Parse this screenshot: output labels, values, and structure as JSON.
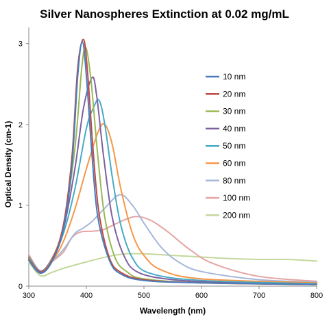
{
  "chart_data": {
    "type": "line",
    "title": "Silver Nanospheres Extinction at 0.02 mg/mL",
    "xlabel": "Wavelength (nm)",
    "ylabel": "Optical Density (cm-1)",
    "xlim": [
      300,
      800
    ],
    "ylim": [
      0,
      3.2
    ],
    "xticks": [
      "300",
      "400",
      "500",
      "600",
      "700",
      "800"
    ],
    "yticks": [
      "0",
      "1",
      "2",
      "3"
    ],
    "grid": false,
    "legend_position": "right",
    "series": [
      {
        "name": "10 nm",
        "color": "#4a7ebb",
        "points": [
          [
            300,
            0.32
          ],
          [
            320,
            0.16
          ],
          [
            340,
            0.3
          ],
          [
            360,
            0.7
          ],
          [
            375,
            1.5
          ],
          [
            385,
            2.6
          ],
          [
            393,
            3.02
          ],
          [
            400,
            2.6
          ],
          [
            410,
            1.6
          ],
          [
            420,
            0.85
          ],
          [
            440,
            0.32
          ],
          [
            460,
            0.15
          ],
          [
            500,
            0.07
          ],
          [
            600,
            0.04
          ],
          [
            800,
            0.02
          ]
        ]
      },
      {
        "name": "20 nm",
        "color": "#be4b48",
        "points": [
          [
            300,
            0.33
          ],
          [
            320,
            0.17
          ],
          [
            340,
            0.32
          ],
          [
            360,
            0.75
          ],
          [
            375,
            1.6
          ],
          [
            385,
            2.7
          ],
          [
            395,
            3.05
          ],
          [
            402,
            2.65
          ],
          [
            412,
            1.65
          ],
          [
            422,
            0.9
          ],
          [
            440,
            0.35
          ],
          [
            460,
            0.17
          ],
          [
            500,
            0.08
          ],
          [
            600,
            0.04
          ],
          [
            800,
            0.02
          ]
        ]
      },
      {
        "name": "30 nm",
        "color": "#98b954",
        "points": [
          [
            300,
            0.34
          ],
          [
            320,
            0.17
          ],
          [
            340,
            0.33
          ],
          [
            360,
            0.75
          ],
          [
            380,
            1.7
          ],
          [
            392,
            2.7
          ],
          [
            399,
            2.95
          ],
          [
            408,
            2.55
          ],
          [
            420,
            1.6
          ],
          [
            432,
            0.85
          ],
          [
            450,
            0.35
          ],
          [
            470,
            0.18
          ],
          [
            500,
            0.09
          ],
          [
            600,
            0.04
          ],
          [
            800,
            0.02
          ]
        ]
      },
      {
        "name": "40 nm",
        "color": "#7d60a0",
        "points": [
          [
            300,
            0.35
          ],
          [
            320,
            0.18
          ],
          [
            340,
            0.34
          ],
          [
            360,
            0.7
          ],
          [
            380,
            1.45
          ],
          [
            395,
            2.2
          ],
          [
            410,
            2.58
          ],
          [
            418,
            2.35
          ],
          [
            430,
            1.6
          ],
          [
            445,
            0.85
          ],
          [
            465,
            0.38
          ],
          [
            490,
            0.17
          ],
          [
            550,
            0.08
          ],
          [
            650,
            0.04
          ],
          [
            800,
            0.02
          ]
        ]
      },
      {
        "name": "50 nm",
        "color": "#46aac5",
        "points": [
          [
            300,
            0.36
          ],
          [
            320,
            0.18
          ],
          [
            340,
            0.33
          ],
          [
            360,
            0.65
          ],
          [
            380,
            1.2
          ],
          [
            400,
            1.95
          ],
          [
            412,
            2.2
          ],
          [
            422,
            2.3
          ],
          [
            432,
            2.0
          ],
          [
            445,
            1.35
          ],
          [
            460,
            0.75
          ],
          [
            480,
            0.35
          ],
          [
            510,
            0.16
          ],
          [
            600,
            0.07
          ],
          [
            800,
            0.03
          ]
        ]
      },
      {
        "name": "60 nm",
        "color": "#f79646",
        "points": [
          [
            300,
            0.37
          ],
          [
            320,
            0.18
          ],
          [
            340,
            0.3
          ],
          [
            360,
            0.55
          ],
          [
            380,
            0.95
          ],
          [
            400,
            1.45
          ],
          [
            420,
            1.9
          ],
          [
            432,
            2.0
          ],
          [
            445,
            1.75
          ],
          [
            460,
            1.2
          ],
          [
            480,
            0.65
          ],
          [
            500,
            0.38
          ],
          [
            530,
            0.2
          ],
          [
            600,
            0.09
          ],
          [
            800,
            0.04
          ]
        ]
      },
      {
        "name": "80 nm",
        "color": "#a5b7d9",
        "points": [
          [
            300,
            0.38
          ],
          [
            320,
            0.19
          ],
          [
            340,
            0.3
          ],
          [
            360,
            0.45
          ],
          [
            380,
            0.65
          ],
          [
            395,
            0.72
          ],
          [
            410,
            0.8
          ],
          [
            430,
            0.95
          ],
          [
            458,
            1.13
          ],
          [
            480,
            1.0
          ],
          [
            500,
            0.78
          ],
          [
            530,
            0.48
          ],
          [
            560,
            0.3
          ],
          [
            600,
            0.18
          ],
          [
            700,
            0.08
          ],
          [
            800,
            0.05
          ]
        ]
      },
      {
        "name": "100 nm",
        "color": "#e6a5a3",
        "points": [
          [
            300,
            0.39
          ],
          [
            320,
            0.19
          ],
          [
            340,
            0.3
          ],
          [
            360,
            0.42
          ],
          [
            375,
            0.6
          ],
          [
            390,
            0.67
          ],
          [
            410,
            0.68
          ],
          [
            430,
            0.7
          ],
          [
            460,
            0.8
          ],
          [
            485,
            0.86
          ],
          [
            510,
            0.82
          ],
          [
            540,
            0.68
          ],
          [
            580,
            0.45
          ],
          [
            620,
            0.28
          ],
          [
            700,
            0.12
          ],
          [
            800,
            0.06
          ]
        ]
      },
      {
        "name": "200 nm",
        "color": "#c4d79b",
        "points": [
          [
            300,
            0.3
          ],
          [
            320,
            0.13
          ],
          [
            340,
            0.17
          ],
          [
            360,
            0.22
          ],
          [
            400,
            0.3
          ],
          [
            440,
            0.37
          ],
          [
            470,
            0.4
          ],
          [
            500,
            0.4
          ],
          [
            550,
            0.38
          ],
          [
            600,
            0.36
          ],
          [
            650,
            0.34
          ],
          [
            700,
            0.33
          ],
          [
            750,
            0.33
          ],
          [
            800,
            0.31
          ]
        ]
      }
    ]
  }
}
